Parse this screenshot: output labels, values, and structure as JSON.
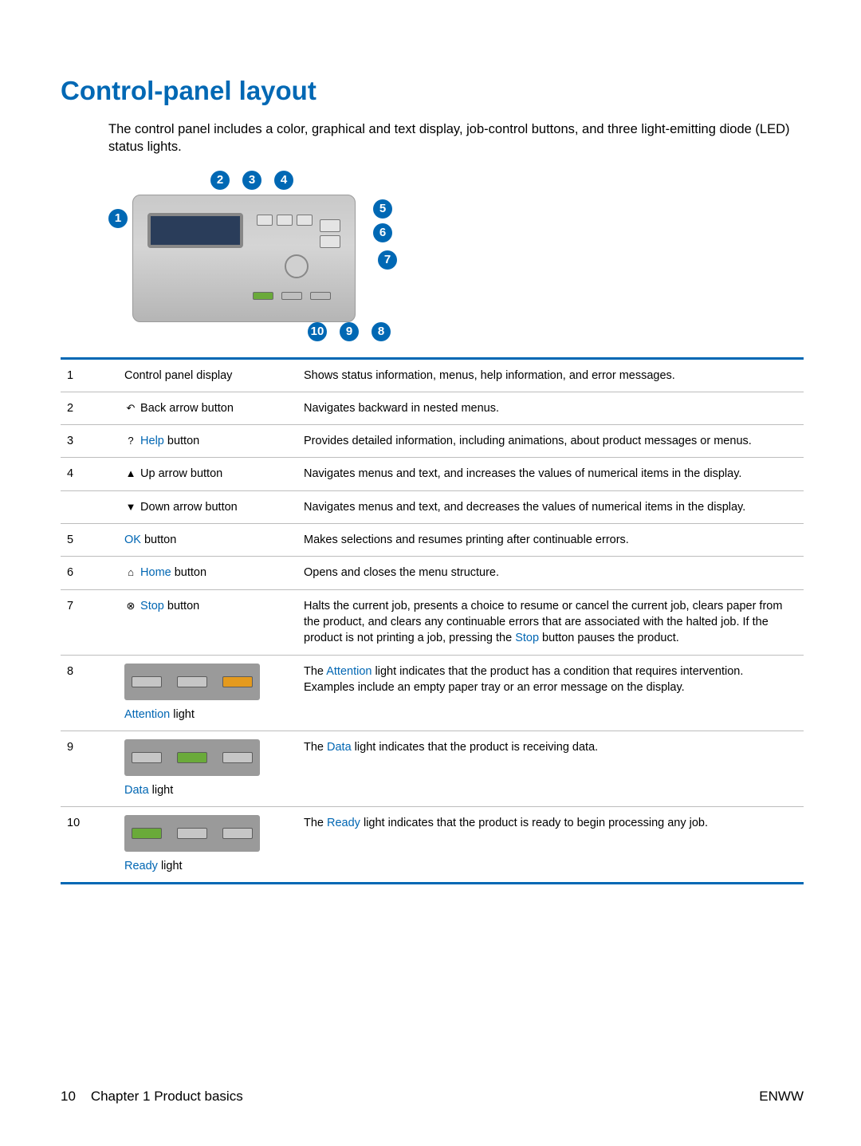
{
  "colors": {
    "heading": "#0068b4",
    "callout_bg": "#0068b4",
    "link": "#0066b3",
    "table_border": "#0068b4",
    "row_border": "#bdbdbd",
    "led_green": "#6aaa3a",
    "led_amber": "#e49a1e",
    "led_off": "#c6c6c6",
    "led_box_bg": "#9a9a9a"
  },
  "heading": "Control-panel layout",
  "intro": "The control panel includes a color, graphical and text display, job-control buttons, and three light-emitting diode (LED) status lights.",
  "callouts": {
    "c1": "1",
    "c2": "2",
    "c3": "3",
    "c4": "4",
    "c5": "5",
    "c6": "6",
    "c7": "7",
    "c8": "8",
    "c9": "9",
    "c10": "10"
  },
  "rows": [
    {
      "n": "1",
      "name_plain": "Control panel display",
      "desc_plain": "Shows status information, menus, help information, and error messages."
    },
    {
      "n": "2",
      "icon": "↶",
      "name_plain": "Back arrow button",
      "desc_plain": "Navigates backward in nested menus."
    },
    {
      "n": "3",
      "icon": "?",
      "name_link_pre": "Help",
      "name_post": " button",
      "desc_plain": "Provides detailed information, including animations, about product messages or menus."
    },
    {
      "n": "4",
      "icon": "▲",
      "name_plain": "Up arrow button",
      "desc_plain": "Navigates menus and text, and increases the values of numerical items in the display."
    },
    {
      "n": "",
      "icon": "▼",
      "name_plain": "Down arrow button",
      "desc_plain": "Navigates menus and text, and decreases the values of numerical items in the display."
    },
    {
      "n": "5",
      "name_link_pre": "OK",
      "name_post": " button",
      "desc_plain": "Makes selections and resumes printing after continuable errors."
    },
    {
      "n": "6",
      "icon": "⌂",
      "name_link_pre": "Home",
      "name_post": " button",
      "desc_plain": "Opens and closes the menu structure."
    },
    {
      "n": "7",
      "icon": "⊗",
      "name_link_pre": "Stop",
      "name_post": " button",
      "desc_pre": "Halts the current job, presents a choice to resume or cancel the current job, clears paper from the product, and clears any continuable errors that are associated with the halted job. If the product is not printing a job, pressing the ",
      "desc_link": "Stop",
      "desc_post": " button pauses the product."
    },
    {
      "n": "8",
      "led": "attention",
      "name_link_pre": "Attention",
      "name_post": " light",
      "desc_pre": "The ",
      "desc_link": "Attention",
      "desc_post": " light indicates that the product has a condition that requires intervention. Examples include an empty paper tray or an error message on the display."
    },
    {
      "n": "9",
      "led": "data",
      "name_link_pre": "Data",
      "name_post": " light",
      "desc_pre": "The ",
      "desc_link": "Data",
      "desc_post": " light indicates that the product is receiving data."
    },
    {
      "n": "10",
      "led": "ready",
      "name_link_pre": "Ready",
      "name_post": " light",
      "desc_pre": "The ",
      "desc_link": "Ready",
      "desc_post": " light indicates that the product is ready to begin processing any job."
    }
  ],
  "footer": {
    "page_no": "10",
    "chapter": "Chapter 1   Product basics",
    "right": "ENWW"
  }
}
